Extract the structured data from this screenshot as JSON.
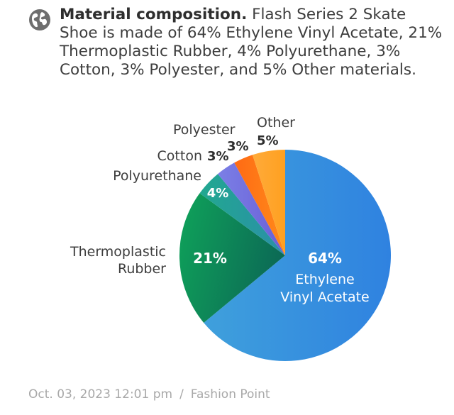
{
  "header": {
    "lead": "Material composition.",
    "text": "Flash Series 2 Skate Shoe is made of 64% Ethylene Vinyl Acetate, 21% Thermoplastic Rubber, 4% Polyurethane, 3% Cotton, 3% Polyester, and 5% Other materials."
  },
  "chart_data": {
    "type": "pie",
    "title": "",
    "slices": [
      {
        "label": "Ethylene Vinyl Acetate",
        "value": 64,
        "color_start": "#3fa0dc",
        "color_end": "#2f82e0"
      },
      {
        "label": "Thermoplastic Rubber",
        "value": 21,
        "color_start": "#0fa35a",
        "color_end": "#0c6b55"
      },
      {
        "label": "Polyurethane",
        "value": 4,
        "color_start": "#22a890",
        "color_end": "#2a8fa8"
      },
      {
        "label": "Cotton",
        "value": 3,
        "color_start": "#7b7fe6",
        "color_end": "#6a5fd6"
      },
      {
        "label": "Polyester",
        "value": 3,
        "color_start": "#ff6a14",
        "color_end": "#ff8a1a"
      },
      {
        "label": "Other",
        "value": 5,
        "color_start": "#ffab3a",
        "color_end": "#ffa020"
      }
    ],
    "labels": {
      "eva_pct": "64%",
      "eva_line1": "Ethylene",
      "eva_line2": "Vinyl Acetate",
      "tpr_pct": "21%",
      "tpr_line1": "Thermoplastic",
      "tpr_line2": "Rubber",
      "pu_pct": "4%",
      "pu_name": "Polyurethane",
      "cotton_pct": "3%",
      "cotton_name": "Cotton",
      "polyester_pct": "3%",
      "polyester_name": "Polyester",
      "other_pct": "5%",
      "other_name": "Other"
    }
  },
  "footer": {
    "date": "Oct. 03, 2023 12:01 pm",
    "separator": "/",
    "source": "Fashion Point"
  }
}
